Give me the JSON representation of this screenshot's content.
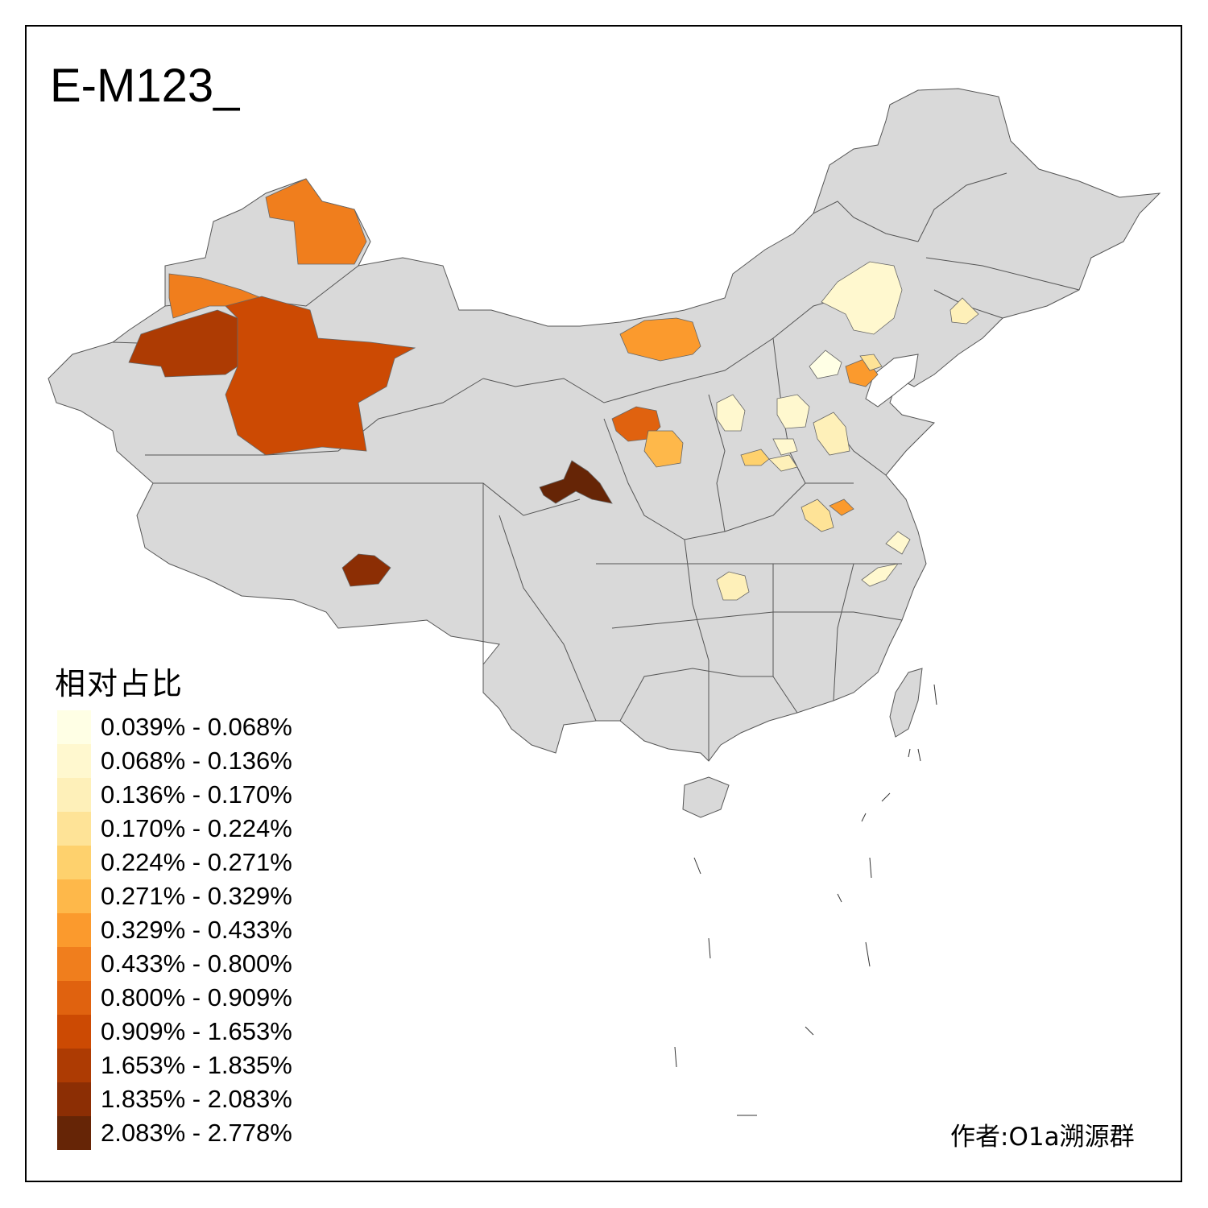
{
  "title": "E-M123_",
  "legend": {
    "title": "相对占比",
    "items": [
      {
        "label": "0.039% - 0.068%",
        "color": "#FFFFE5"
      },
      {
        "label": "0.068% - 0.136%",
        "color": "#FFF8CF"
      },
      {
        "label": "0.136% - 0.170%",
        "color": "#FEF0B9"
      },
      {
        "label": "0.170% - 0.224%",
        "color": "#FEE397"
      },
      {
        "label": "0.224% - 0.271%",
        "color": "#FED16D"
      },
      {
        "label": "0.271% - 0.329%",
        "color": "#FEB84A"
      },
      {
        "label": "0.329% - 0.433%",
        "color": "#FB9A2D"
      },
      {
        "label": "0.433% - 0.800%",
        "color": "#F07E1D"
      },
      {
        "label": "0.800% - 0.909%",
        "color": "#E0620F"
      },
      {
        "label": "0.909% - 1.653%",
        "color": "#CC4A03"
      },
      {
        "label": "1.653% - 1.835%",
        "color": "#AD3B03"
      },
      {
        "label": "1.835% - 2.083%",
        "color": "#8C2E04"
      },
      {
        "label": "2.083% - 2.778%",
        "color": "#662506"
      }
    ]
  },
  "credit": "作者:O1a溯源群",
  "colors": {
    "base_land": "#D9D9D9",
    "border": "#555555",
    "frame": "#000000"
  }
}
